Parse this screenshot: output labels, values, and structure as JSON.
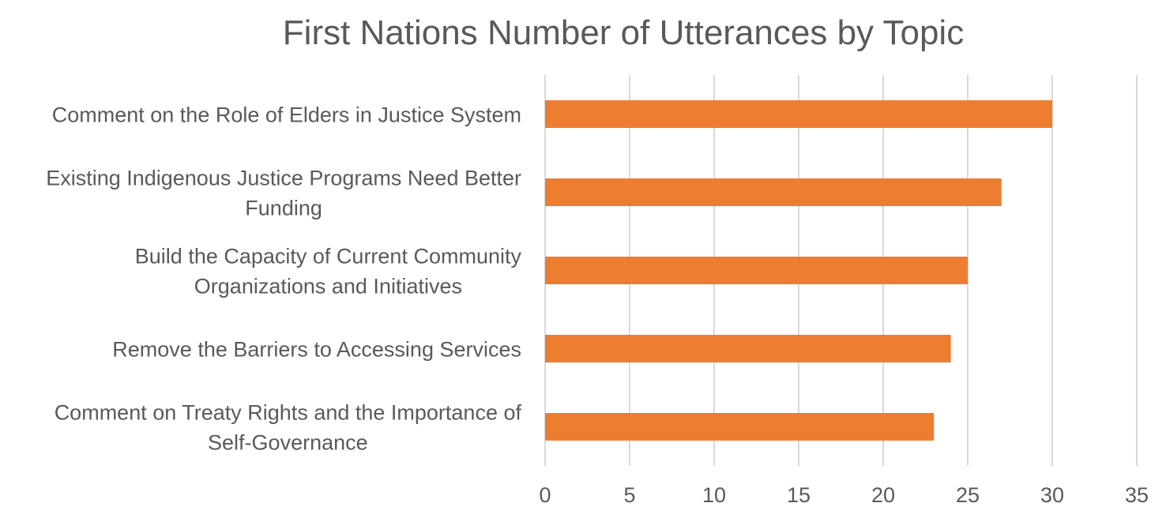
{
  "chart_data": {
    "type": "bar",
    "orientation": "horizontal",
    "title": "First Nations Number of Utterances by Topic",
    "categories": [
      "Comment on the Role of Elders in Justice System",
      "Existing Indigenous Justice Programs Need Better Funding",
      "Build the Capacity of Current Community Organizations and Initiatives",
      "Remove the Barriers to Accessing Services",
      "Comment on Treaty Rights and the Importance of Self-Governance"
    ],
    "category_label_lines": [
      [
        "Comment on the Role of Elders in Justice System"
      ],
      [
        "Existing Indigenous Justice Programs Need Better",
        "Funding"
      ],
      [
        "Build the Capacity of Current Community",
        "Organizations and Initiatives"
      ],
      [
        "Remove the Barriers to Accessing Services"
      ],
      [
        "Comment on Treaty Rights and the Importance of",
        "Self-Governance"
      ]
    ],
    "values": [
      30,
      27,
      25,
      24,
      23
    ],
    "xlabel": "",
    "ylabel": "",
    "xlim": [
      0,
      35
    ],
    "ticks": [
      0,
      5,
      10,
      15,
      20,
      25,
      30,
      35
    ],
    "tick_labels": [
      "0",
      "5",
      "10",
      "15",
      "20",
      "25",
      "30",
      "35"
    ],
    "grid": true,
    "legend": "none",
    "bar_color": "#ED7D31",
    "grid_color": "#D9D9D9",
    "text_color": "#595959"
  }
}
